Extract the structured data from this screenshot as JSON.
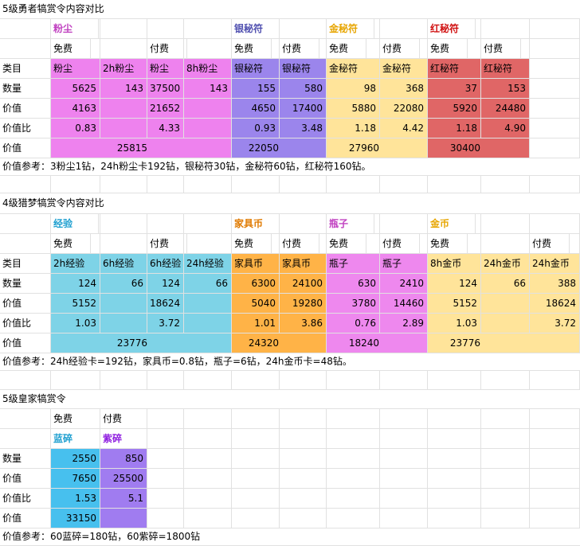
{
  "colors": {
    "pink": "#EE82EE",
    "purple_soft": "#9B85EC",
    "yellow": "#FFE49A",
    "red": "#E06666",
    "cyan": "#7ED3E7",
    "orange": "#FFB347",
    "pink2": "#EE88EE",
    "yellow2": "#FFE49A",
    "blue": "#47C0EE",
    "violet": "#A07CF0",
    "text_pink": "#C040C0",
    "text_indigo": "#5050B0",
    "text_gold": "#E7A500",
    "text_red": "#D01010",
    "text_cyan": "#20A0D0",
    "text_orange": "#E07A00",
    "text_violet": "#9020E0"
  },
  "sec1": {
    "title": "5级勇者犒赏令内容对比",
    "groups": [
      "粉尘",
      "银秘符",
      "金秘符",
      "红秘符"
    ],
    "free": "免费",
    "paid": "付费",
    "row_labels": [
      "类目",
      "数量",
      "价值",
      "价值比",
      "价值"
    ],
    "cats": [
      "粉尘",
      "2h粉尘",
      "粉尘",
      "8h粉尘",
      "银秘符",
      "银秘符",
      "金秘符",
      "金秘符",
      "红秘符",
      "红秘符"
    ],
    "qty": [
      "5625",
      "143",
      "37500",
      "143",
      "155",
      "580",
      "98",
      "368",
      "37",
      "153"
    ],
    "val": [
      "4163",
      "",
      "21652",
      "",
      "4650",
      "17400",
      "5880",
      "22080",
      "5920",
      "24480"
    ],
    "ratio": [
      "0.83",
      "",
      "4.33",
      "",
      "0.93",
      "3.48",
      "1.18",
      "4.42",
      "1.18",
      "4.90"
    ],
    "total": [
      "25815",
      "22050",
      "27960",
      "30400"
    ],
    "note": "价值参考：3粉尘1钻，24h粉尘卡192钻，银秘符30钻，金秘符60钻，红秘符160钻。"
  },
  "sec2": {
    "title": "4级猎梦犒赏令内容对比",
    "groups": [
      "经验",
      "家具币",
      "瓶子",
      "金币"
    ],
    "free": "免费",
    "paid": "付费",
    "row_labels": [
      "类目",
      "数量",
      "价值",
      "价值比",
      "价值"
    ],
    "cats": [
      "2h经验",
      "6h经验",
      "6h经验",
      "24h经验",
      "家具币",
      "家具币",
      "瓶子",
      "瓶子",
      "8h金币",
      "24h金币",
      "24h金币"
    ],
    "qty": [
      "124",
      "66",
      "124",
      "66",
      "6300",
      "24100",
      "630",
      "2410",
      "124",
      "66",
      "388"
    ],
    "val": [
      "5152",
      "",
      "18624",
      "",
      "5040",
      "19280",
      "3780",
      "14460",
      "5152",
      "",
      "18624"
    ],
    "ratio": [
      "1.03",
      "",
      "3.72",
      "",
      "1.01",
      "3.86",
      "0.76",
      "2.89",
      "1.03",
      "",
      "3.72"
    ],
    "total": [
      "23776",
      "24320",
      "18240",
      "23776"
    ],
    "note": "价值参考：24h经验卡=192钻，家具币=0.8钻，瓶子=6钻，24h金币卡=48钻。"
  },
  "sec3": {
    "title": "5级皇家犒赏令",
    "free": "免费",
    "paid": "付费",
    "groups": [
      "蓝碎",
      "紫碎"
    ],
    "row_labels": [
      "数量",
      "价值",
      "价值比",
      "价值"
    ],
    "qty": [
      "2550",
      "850"
    ],
    "val": [
      "7650",
      "25500"
    ],
    "ratio": [
      "1.53",
      "5.1"
    ],
    "total": [
      "33150"
    ],
    "note": "价值参考：60蓝碎=180钻，60紫碎=1800钻"
  }
}
